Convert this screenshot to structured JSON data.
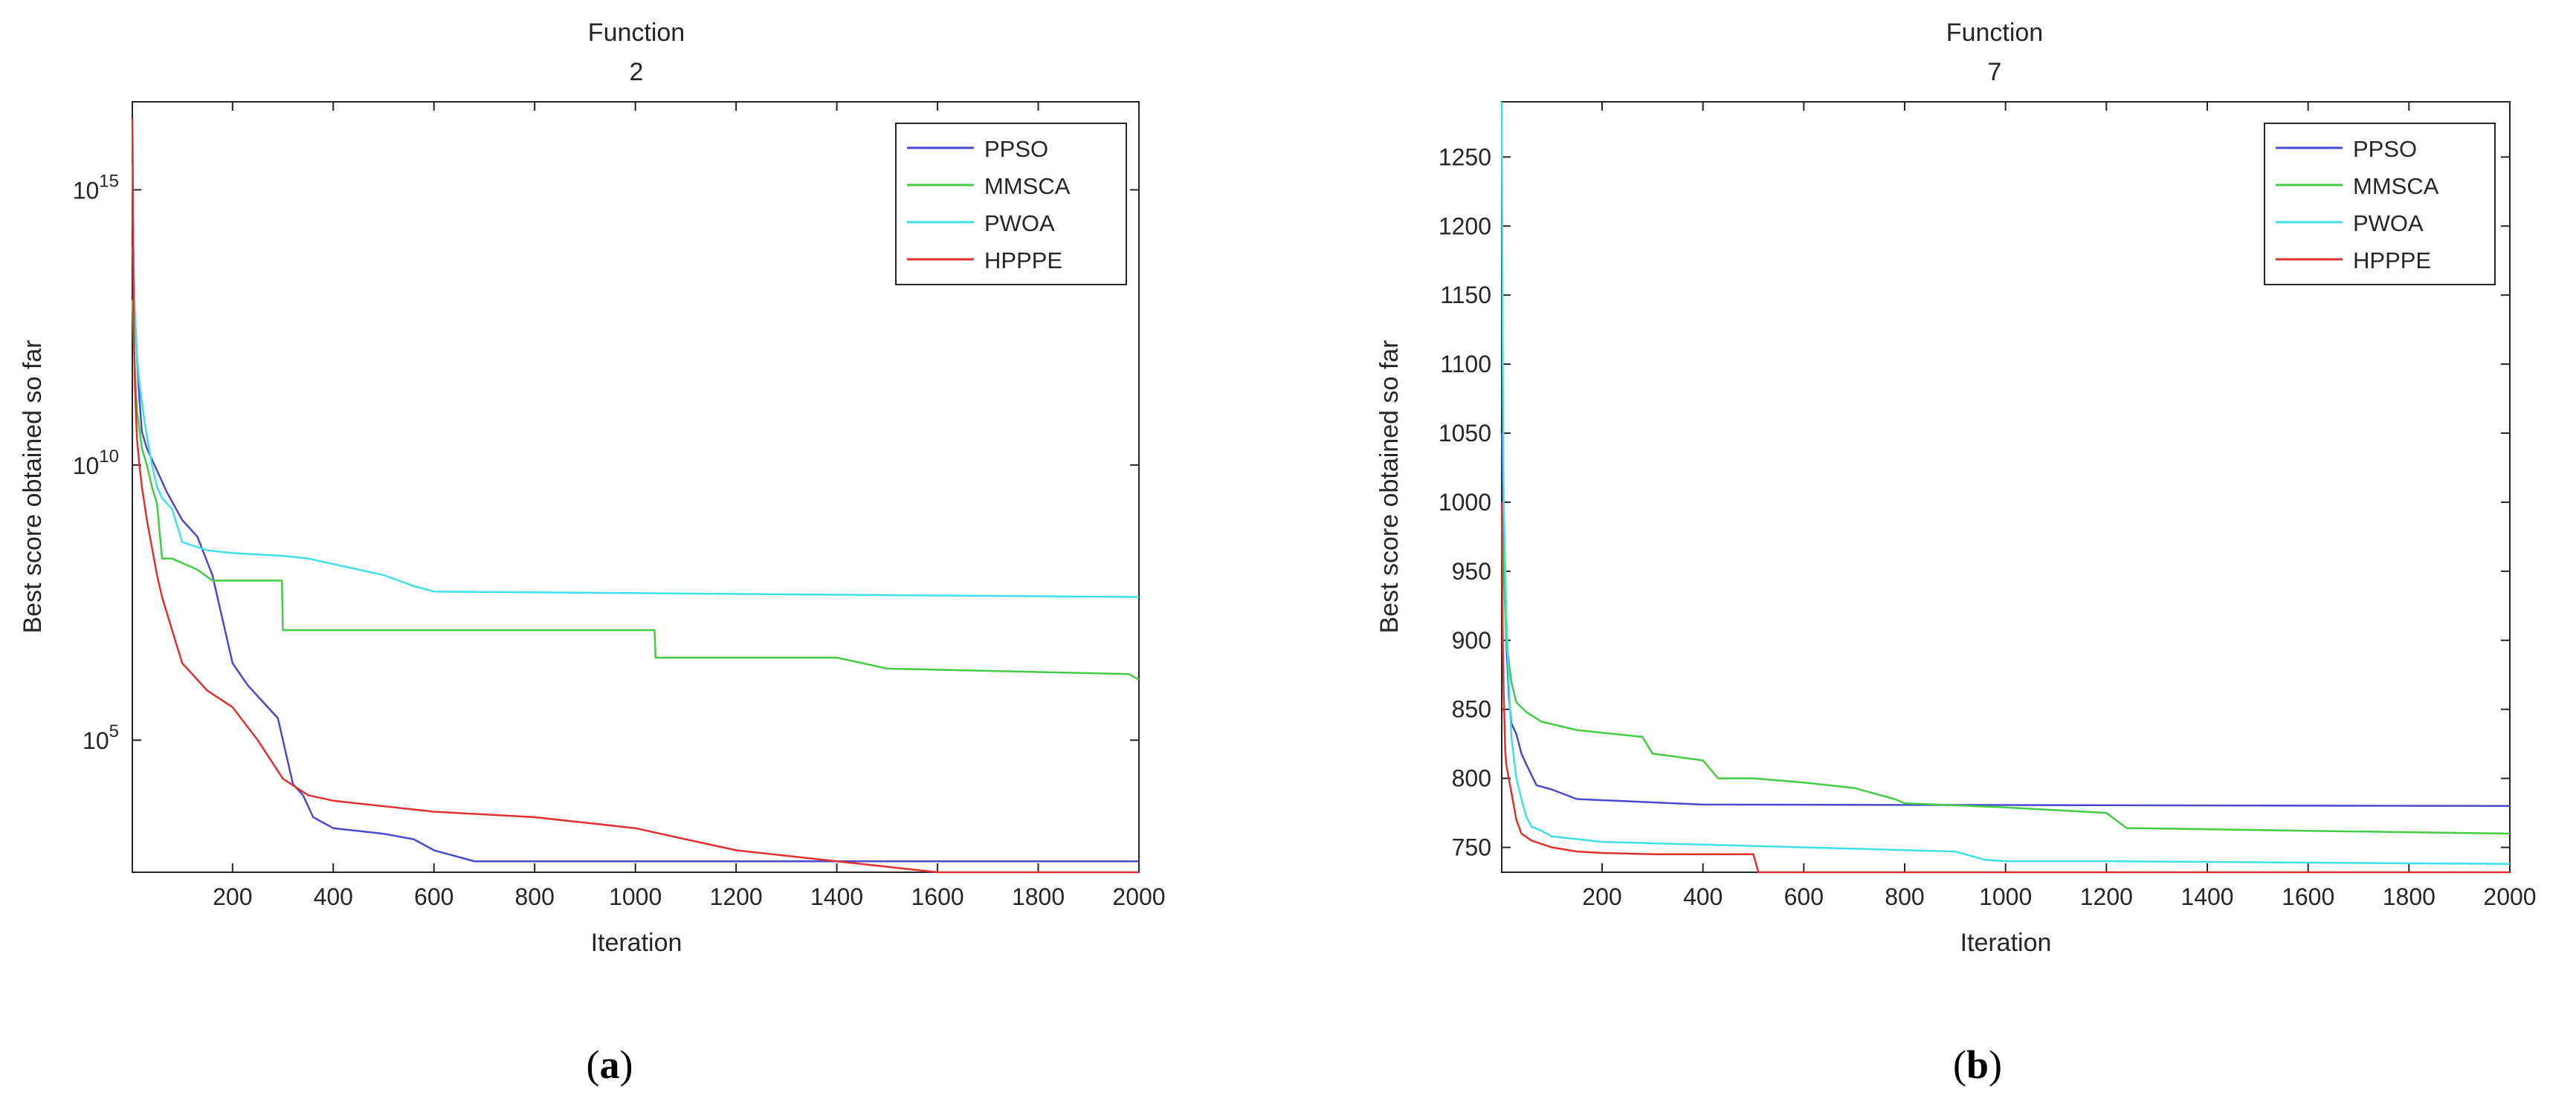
{
  "chart_data": [
    {
      "type": "line",
      "title_lines": [
        "Function",
        "2"
      ],
      "xlabel": "Iteration",
      "ylabel": "Best score obtained so far",
      "y_scale": "log",
      "xlim": [
        1,
        2000
      ],
      "ylim_log10": [
        2.6,
        16.6
      ],
      "x_ticks": [
        200,
        400,
        600,
        800,
        1000,
        1200,
        1400,
        1600,
        1800,
        2000
      ],
      "x_tick_labels": [
        "200",
        "400",
        "600",
        "800",
        "1000",
        "1200",
        "1400",
        "1600",
        "1800",
        "2000"
      ],
      "y_ticks_log10": [
        5,
        10,
        15
      ],
      "y_tick_base": "10",
      "y_tick_exponents": [
        "5",
        "10",
        "15"
      ],
      "legend_location": "top-right",
      "caption_open": "(",
      "caption_letter": "a",
      "caption_close": ")",
      "series": [
        {
          "name": "PPSO",
          "color": "#4a4ad0",
          "x": [
            1,
            5,
            10,
            15,
            20,
            30,
            50,
            70,
            100,
            130,
            160,
            200,
            230,
            260,
            290,
            320,
            340,
            360,
            400,
            500,
            560,
            600,
            640,
            660,
            680,
            2000
          ],
          "y_log10": [
            14.0,
            13.0,
            12.0,
            11.2,
            10.6,
            10.3,
            9.9,
            9.5,
            9.0,
            8.7,
            8.0,
            6.4,
            6.0,
            5.7,
            5.4,
            4.2,
            4.0,
            3.6,
            3.4,
            3.3,
            3.2,
            3.0,
            2.9,
            2.85,
            2.8,
            2.8
          ]
        },
        {
          "name": "MMSCA",
          "color": "#44cc44",
          "x": [
            1,
            5,
            10,
            20,
            30,
            40,
            50,
            60,
            80,
            130,
            160,
            298,
            300,
            1038,
            1040,
            1400,
            1500,
            1980,
            2000
          ],
          "y_log10": [
            13.0,
            12.0,
            11.0,
            10.3,
            10.0,
            9.6,
            9.3,
            8.3,
            8.3,
            8.1,
            7.9,
            7.9,
            7.0,
            7.0,
            6.5,
            6.5,
            6.3,
            6.2,
            6.1
          ]
        },
        {
          "name": "PWOA",
          "color": "#40e0e8",
          "x": [
            1,
            3,
            6,
            10,
            15,
            25,
            40,
            50,
            60,
            70,
            80,
            100,
            150,
            200,
            300,
            350,
            400,
            500,
            560,
            600,
            2000
          ],
          "y_log10": [
            15.5,
            14.0,
            12.8,
            12.0,
            11.5,
            10.8,
            10.0,
            9.6,
            9.4,
            9.3,
            9.2,
            8.6,
            8.45,
            8.4,
            8.35,
            8.3,
            8.2,
            8.0,
            7.8,
            7.7,
            7.6
          ]
        },
        {
          "name": "HPPPE",
          "color": "#e03030",
          "x": [
            1,
            2,
            3,
            4,
            6,
            8,
            10,
            15,
            20,
            30,
            40,
            50,
            60,
            80,
            100,
            150,
            200,
            250,
            300,
            350,
            400,
            600,
            800,
            900,
            1000,
            1100,
            1200,
            1400,
            1500,
            1600,
            2000
          ],
          "y_log10": [
            16.3,
            15.2,
            13.5,
            12.5,
            11.5,
            11.0,
            10.5,
            10.0,
            9.6,
            9.0,
            8.5,
            8.0,
            7.6,
            7.0,
            6.4,
            5.9,
            5.6,
            5.0,
            4.3,
            4.0,
            3.9,
            3.7,
            3.6,
            3.5,
            3.4,
            3.2,
            3.0,
            2.8,
            2.7,
            2.6,
            2.6
          ]
        }
      ]
    },
    {
      "type": "line",
      "title_lines": [
        "Function",
        "7"
      ],
      "xlabel": "Iteration",
      "ylabel": "Best score obtained so far",
      "y_scale": "linear",
      "xlim": [
        1,
        2000
      ],
      "ylim": [
        732,
        1290
      ],
      "x_ticks": [
        200,
        400,
        600,
        800,
        1000,
        1200,
        1400,
        1600,
        1800,
        2000
      ],
      "x_tick_labels": [
        "200",
        "400",
        "600",
        "800",
        "1000",
        "1200",
        "1400",
        "1600",
        "1800",
        "2000"
      ],
      "y_ticks": [
        750,
        800,
        850,
        900,
        950,
        1000,
        1050,
        1100,
        1150,
        1200,
        1250
      ],
      "y_tick_labels": [
        "750",
        "800",
        "850",
        "900",
        "950",
        "1000",
        "1050",
        "1100",
        "1150",
        "1200",
        "1250"
      ],
      "legend_location": "top-right",
      "caption_open": "(",
      "caption_letter": "b",
      "caption_close": ")",
      "series": [
        {
          "name": "PPSO",
          "color": "#4a4ad0",
          "x": [
            1,
            5,
            10,
            15,
            20,
            30,
            40,
            50,
            70,
            100,
            150,
            400,
            2000
          ],
          "y": [
            1050,
            990,
            900,
            860,
            840,
            832,
            818,
            810,
            795,
            792,
            785,
            781,
            780
          ]
        },
        {
          "name": "MMSCA",
          "color": "#44cc44",
          "x": [
            1,
            5,
            10,
            20,
            30,
            50,
            80,
            150,
            280,
            300,
            400,
            430,
            500,
            600,
            700,
            780,
            800,
            1000,
            1200,
            1240,
            1600,
            1800,
            2000
          ],
          "y": [
            990,
            950,
            900,
            870,
            855,
            848,
            841,
            835,
            830,
            818,
            813,
            800,
            800,
            797,
            793,
            785,
            782,
            779,
            775,
            764,
            762,
            761,
            760
          ]
        },
        {
          "name": "PWOA",
          "color": "#40e0e8",
          "x": [
            1,
            2,
            3,
            5,
            10,
            15,
            20,
            30,
            40,
            50,
            60,
            80,
            100,
            150,
            200,
            400,
            600,
            900,
            940,
            960,
            1000,
            1200,
            1600,
            2000
          ],
          "y": [
            1290,
            1200,
            1100,
            1000,
            920,
            870,
            830,
            800,
            785,
            772,
            765,
            762,
            758,
            756,
            754,
            752,
            750,
            747,
            743,
            741,
            740,
            740,
            739,
            738
          ]
        },
        {
          "name": "HPPPE",
          "color": "#e03030",
          "x": [
            1,
            3,
            5,
            8,
            10,
            15,
            20,
            30,
            40,
            60,
            100,
            150,
            200,
            300,
            500,
            510,
            2000
          ],
          "y": [
            1000,
            900,
            860,
            820,
            810,
            800,
            790,
            770,
            760,
            755,
            750,
            747,
            746,
            745,
            745,
            732,
            732
          ]
        }
      ]
    }
  ]
}
